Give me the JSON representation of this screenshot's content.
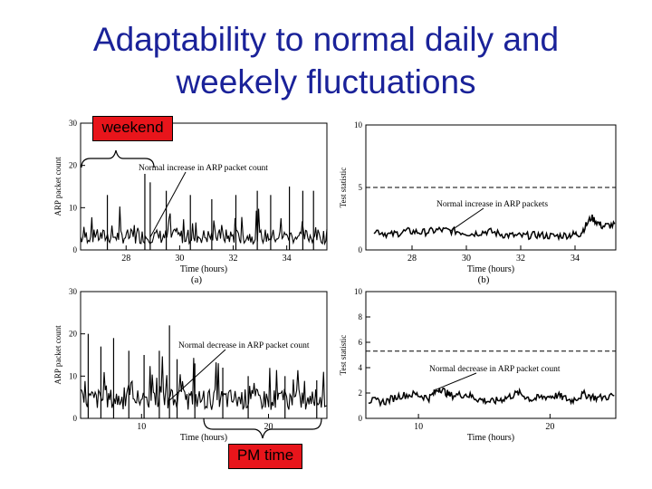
{
  "slide": {
    "title_line1": "Adaptability to normal daily and",
    "title_line2": "weekely fluctuations",
    "tag_weekend": "weekend",
    "tag_pm": "PM time"
  },
  "colors": {
    "title": "#1a2299",
    "tag_bg": "#e8151b",
    "trace": "#000000"
  },
  "chart_data": [
    {
      "type": "line",
      "id": "a",
      "panel_label": "(a)",
      "xlabel": "Time (hours)",
      "ylabel": "ARP packet count",
      "xticks": [
        28,
        30,
        32,
        34
      ],
      "yticks": [
        0,
        10,
        20,
        30
      ],
      "xlim": [
        26.3,
        35.5
      ],
      "ylim": [
        0,
        30
      ],
      "annotation": "Normal increase in ARP packet count",
      "arrow_to": [
        28.9,
        3
      ],
      "series": [
        {
          "style": "spiky",
          "baseline": 2.5,
          "spread": 3.5,
          "peaks": [
            [
              27.3,
              13
            ],
            [
              28.7,
              18
            ],
            [
              28.9,
              16
            ],
            [
              29.5,
              14
            ],
            [
              30.4,
              13
            ],
            [
              31.2,
              12
            ],
            [
              32.1,
              13
            ],
            [
              32.9,
              14
            ],
            [
              33.4,
              13
            ],
            [
              34.1,
              15
            ],
            [
              34.6,
              14
            ],
            [
              35.0,
              14
            ]
          ]
        }
      ]
    },
    {
      "type": "line",
      "id": "b",
      "panel_label": "(b)",
      "xlabel": "Time (hours)",
      "ylabel": "Test statistic",
      "xticks": [
        28,
        30,
        32,
        34
      ],
      "yticks": [
        0,
        5,
        10
      ],
      "xlim": [
        26.3,
        35.5
      ],
      "ylim": [
        0,
        10
      ],
      "threshold": 5,
      "annotation": "Normal increase in ARP packets",
      "arrow_to": [
        29.4,
        1.5
      ],
      "series": [
        {
          "style": "smooth",
          "points": [
            [
              26.6,
              1.6
            ],
            [
              27.2,
              1.2
            ],
            [
              27.8,
              1.5
            ],
            [
              28.4,
              1.4
            ],
            [
              29.0,
              1.6
            ],
            [
              29.6,
              1.5
            ],
            [
              30.2,
              1.3
            ],
            [
              30.8,
              1.5
            ],
            [
              31.4,
              1.2
            ],
            [
              32.0,
              1.1
            ],
            [
              32.6,
              1.2
            ],
            [
              33.2,
              1.1
            ],
            [
              33.8,
              1.2
            ],
            [
              34.2,
              1.3
            ],
            [
              34.6,
              2.6
            ],
            [
              35.0,
              1.9
            ],
            [
              35.5,
              2.0
            ]
          ]
        }
      ]
    },
    {
      "type": "line",
      "id": "c",
      "panel_label": "",
      "xlabel": "Time (hours)",
      "ylabel": "ARP packet count",
      "xticks": [
        10,
        20
      ],
      "yticks": [
        0,
        10,
        20,
        30
      ],
      "xlim": [
        5.2,
        24.6
      ],
      "ylim": [
        0,
        30
      ],
      "annotation": "Normal decrease in ARP packet count",
      "arrow_to": [
        12.1,
        4
      ],
      "series": [
        {
          "style": "spiky",
          "baseline": 3.5,
          "spread": 5,
          "peaks": [
            [
              5.8,
              20
            ],
            [
              6.8,
              17
            ],
            [
              7.8,
              19
            ],
            [
              9.0,
              16
            ],
            [
              10.2,
              15
            ],
            [
              11.4,
              16
            ],
            [
              12.2,
              22
            ],
            [
              12.8,
              14
            ],
            [
              14.2,
              13
            ],
            [
              16.4,
              12
            ],
            [
              18.4,
              10
            ],
            [
              21.3,
              10
            ],
            [
              23.8,
              9
            ]
          ]
        }
      ]
    },
    {
      "type": "line",
      "id": "d",
      "panel_label": "",
      "xlabel": "Time (hours)",
      "ylabel": "Test statistic",
      "xticks": [
        10,
        20
      ],
      "yticks": [
        0,
        2,
        4,
        6,
        8,
        10
      ],
      "xlim": [
        6.0,
        25.0
      ],
      "ylim": [
        0,
        10
      ],
      "threshold": 5.3,
      "annotation": "Normal decrease in ARP packet count",
      "arrow_to": [
        11.4,
        2.3
      ],
      "series": [
        {
          "style": "smooth",
          "points": [
            [
              6.2,
              1.4
            ],
            [
              7.4,
              1.3
            ],
            [
              8.6,
              1.8
            ],
            [
              9.8,
              1.9
            ],
            [
              10.8,
              1.6
            ],
            [
              11.6,
              2.4
            ],
            [
              12.4,
              1.8
            ],
            [
              13.6,
              1.9
            ],
            [
              14.6,
              1.5
            ],
            [
              15.6,
              1.3
            ],
            [
              16.6,
              1.6
            ],
            [
              17.6,
              2.0
            ],
            [
              18.6,
              1.5
            ],
            [
              19.6,
              1.7
            ],
            [
              20.6,
              1.8
            ],
            [
              21.6,
              1.4
            ],
            [
              22.6,
              1.9
            ],
            [
              23.6,
              1.6
            ],
            [
              25.0,
              1.8
            ]
          ]
        }
      ]
    }
  ]
}
